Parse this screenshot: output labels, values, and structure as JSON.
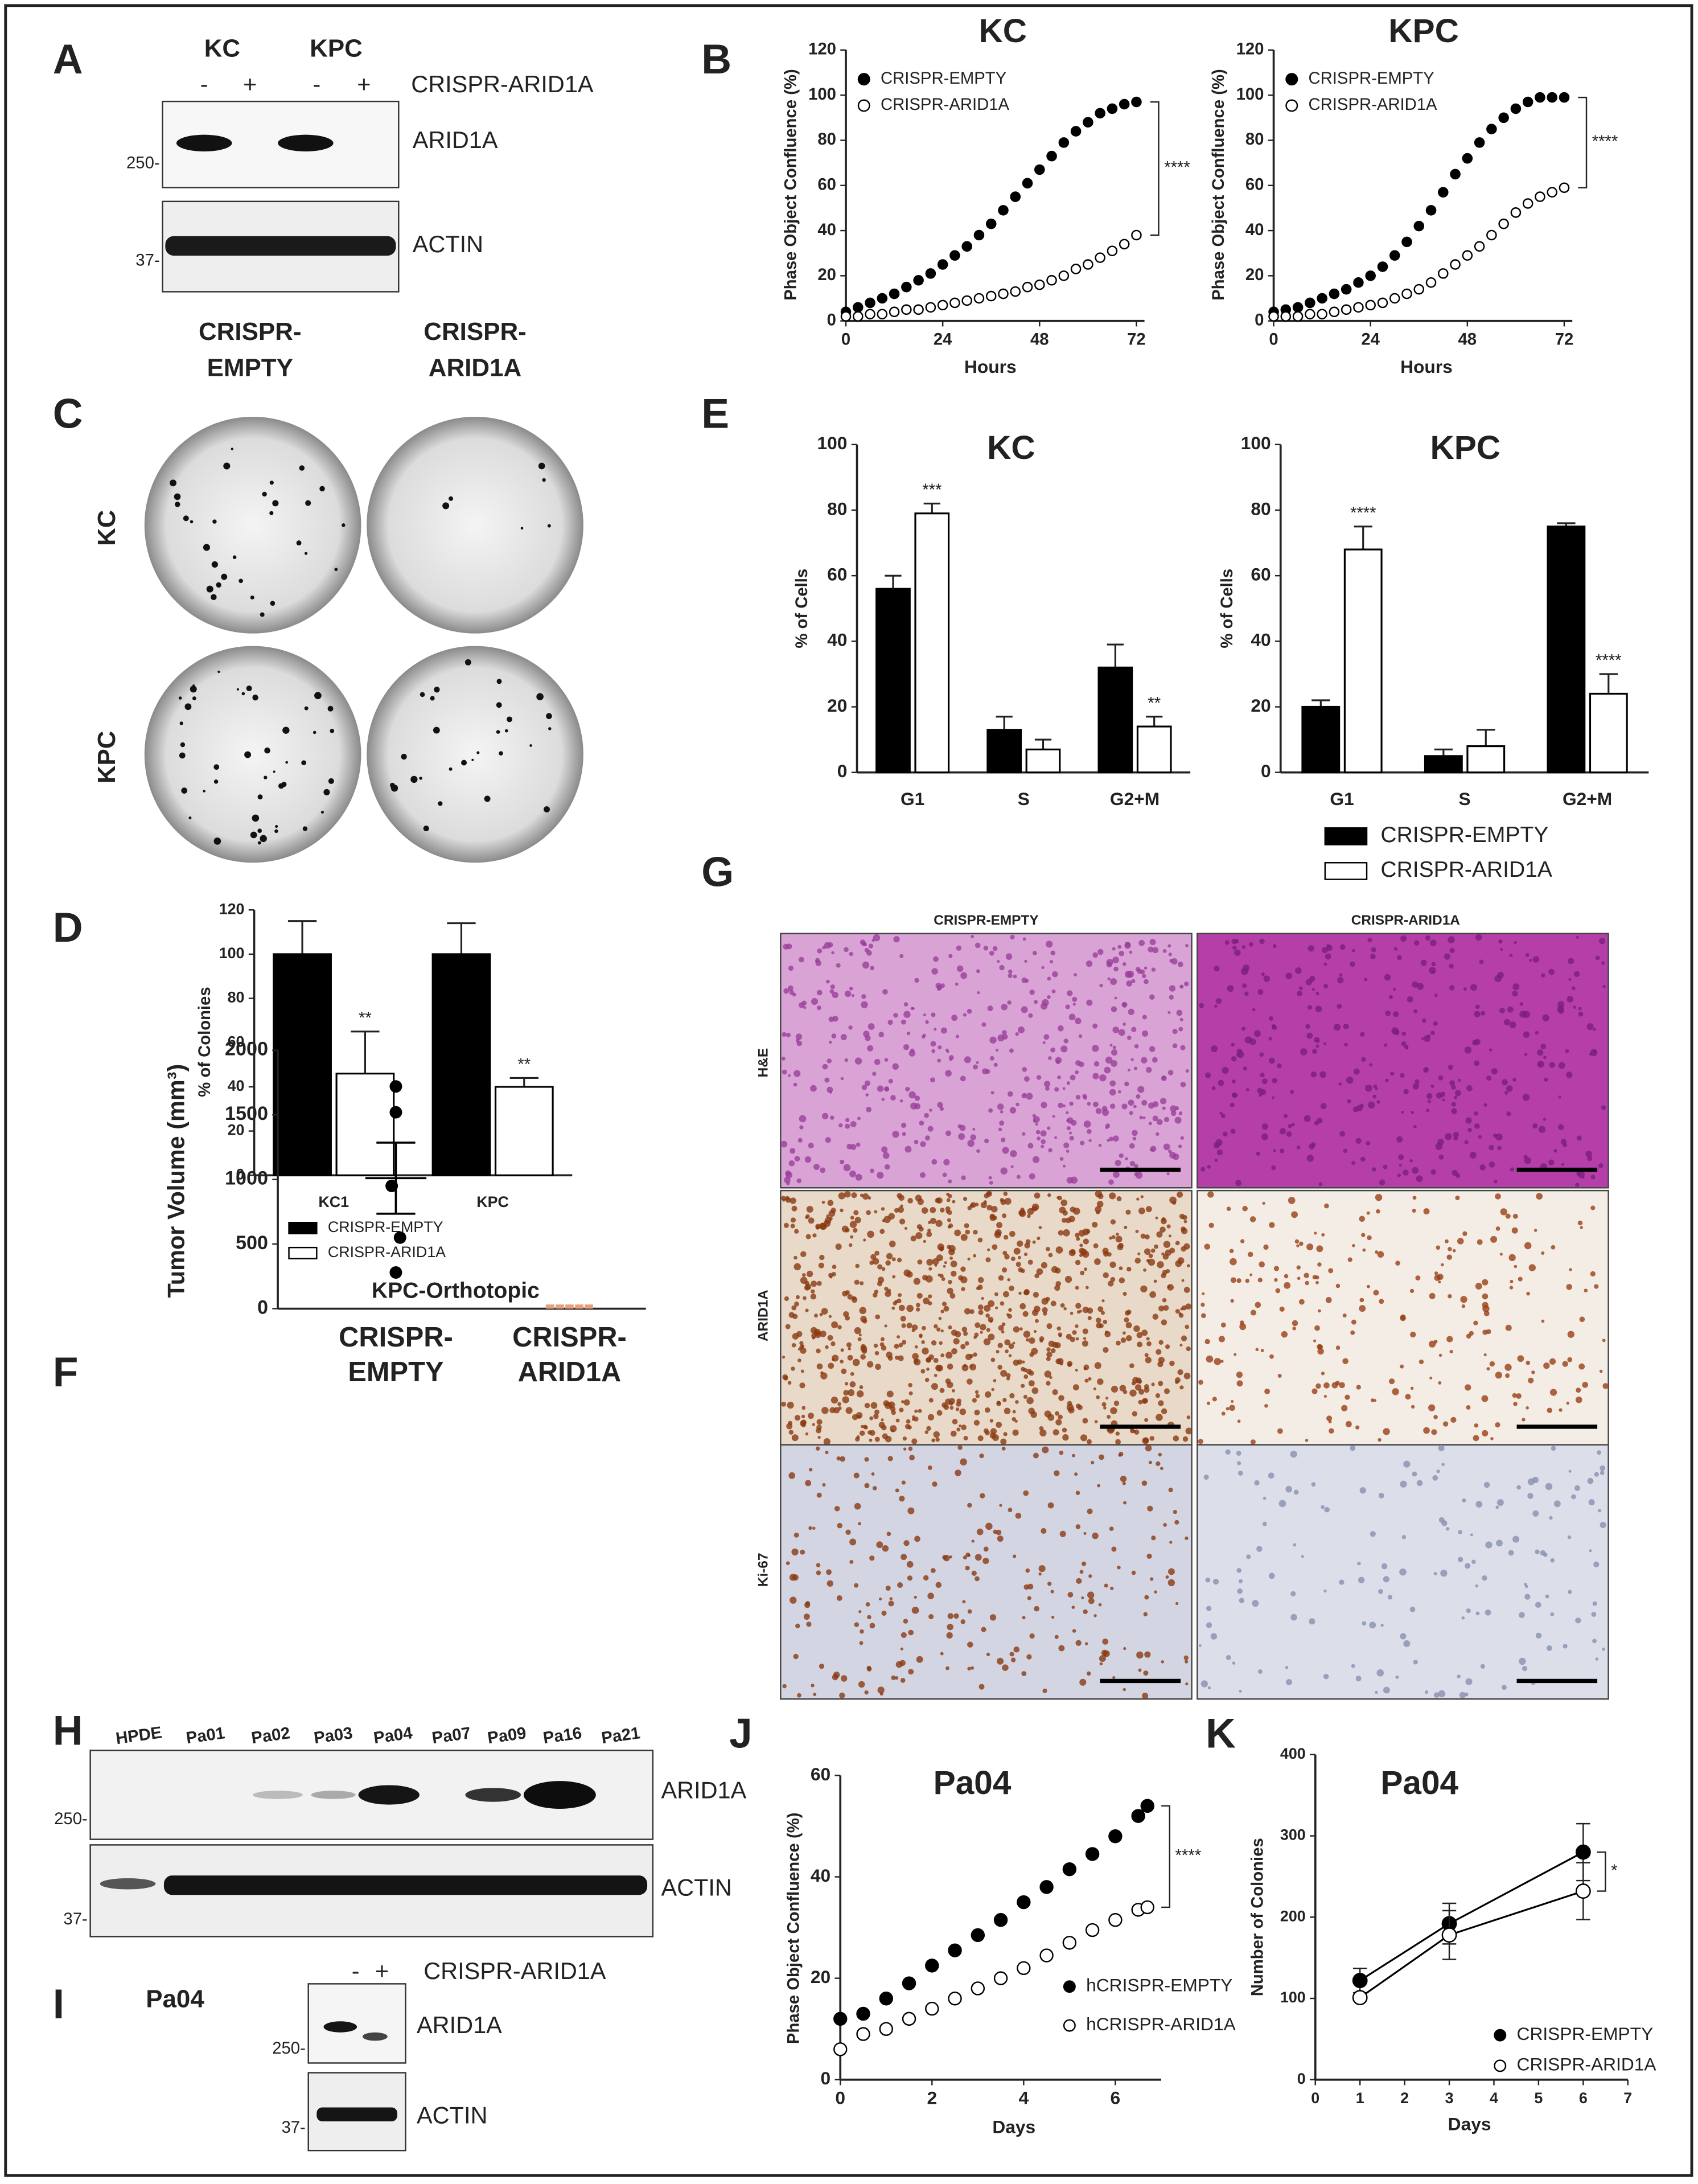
{
  "panel_labels": [
    "A",
    "B",
    "C",
    "D",
    "E",
    "F",
    "G",
    "H",
    "I",
    "J",
    "K"
  ],
  "blot_A": {
    "groups": [
      "KC",
      "KPC"
    ],
    "lanes": [
      "-",
      "+",
      "-",
      "+"
    ],
    "treatment": "CRISPR-ARID1A",
    "bands": [
      "ARID1A",
      "ACTIN"
    ],
    "markers": [
      "250-",
      "37-"
    ]
  },
  "colony_C": {
    "columns": [
      [
        "CRISPR-",
        "EMPTY"
      ],
      [
        "CRISPR-",
        "ARID1A"
      ]
    ],
    "rows": [
      "KC",
      "KPC"
    ]
  },
  "histology_G": {
    "columns": [
      "CRISPR-EMPTY",
      "CRISPR-ARID1A"
    ],
    "rows": [
      "H&E",
      "ARID1A",
      "Ki-67"
    ]
  },
  "blot_H": {
    "lanes": [
      "HPDE",
      "Pa01",
      "Pa02",
      "Pa03",
      "Pa04",
      "Pa07",
      "Pa09",
      "Pa16",
      "Pa21"
    ],
    "bands": [
      "ARID1A",
      "ACTIN"
    ],
    "markers": [
      "250-",
      "37-"
    ]
  },
  "blot_I": {
    "sample": "Pa04",
    "lanes": [
      "-",
      "+"
    ],
    "treatment": "CRISPR-ARID1A",
    "bands": [
      "ARID1A",
      "ACTIN"
    ],
    "markers": [
      "250-",
      "37-"
    ]
  },
  "chart_data": [
    {
      "type": "line",
      "title": "KC",
      "x_label": "Hours",
      "y_label": "Phase Object Confluence (%)",
      "x": [
        0,
        3,
        6,
        9,
        12,
        15,
        18,
        21,
        24,
        27,
        30,
        33,
        36,
        39,
        42,
        45,
        48,
        51,
        54,
        57,
        60,
        63,
        66,
        69,
        72
      ],
      "series": [
        {
          "name": "CRISPR-EMPTY",
          "color": "#000000",
          "facecolor": "#000000",
          "values": [
            4,
            6,
            8,
            10,
            12,
            15,
            18,
            21,
            25,
            29,
            33,
            38,
            43,
            49,
            55,
            61,
            67,
            73,
            79,
            84,
            88,
            92,
            94,
            96,
            97
          ]
        },
        {
          "name": "CRISPR-ARID1A",
          "color": "#000000",
          "facecolor": "#ffffff",
          "values": [
            2,
            2,
            3,
            3,
            4,
            5,
            5,
            6,
            7,
            8,
            9,
            10,
            11,
            12,
            13,
            15,
            16,
            18,
            20,
            23,
            25,
            28,
            31,
            34,
            38
          ]
        }
      ],
      "annotation": "****",
      "xlim": [
        0,
        74
      ],
      "xticks": [
        0,
        24,
        48,
        72
      ],
      "ylim": [
        0,
        120
      ],
      "yticks": [
        0,
        20,
        40,
        60,
        80,
        100,
        120
      ],
      "legend": "upper left"
    },
    {
      "type": "line",
      "title": "KPC",
      "x_label": "Hours",
      "y_label": "Phase Object Confluence (%)",
      "x": [
        0,
        3,
        6,
        9,
        12,
        15,
        18,
        21,
        24,
        27,
        30,
        33,
        36,
        39,
        42,
        45,
        48,
        51,
        54,
        57,
        60,
        63,
        66,
        69,
        72
      ],
      "series": [
        {
          "name": "CRISPR-EMPTY",
          "color": "#000000",
          "facecolor": "#000000",
          "values": [
            4,
            5,
            6,
            8,
            10,
            12,
            14,
            17,
            20,
            24,
            29,
            35,
            42,
            49,
            57,
            65,
            72,
            79,
            85,
            90,
            94,
            97,
            99,
            99,
            99
          ]
        },
        {
          "name": "CRISPR-ARID1A",
          "color": "#000000",
          "facecolor": "#ffffff",
          "values": [
            2,
            2,
            2,
            3,
            3,
            4,
            5,
            6,
            7,
            8,
            10,
            12,
            14,
            17,
            21,
            25,
            29,
            33,
            38,
            43,
            48,
            52,
            55,
            57,
            59
          ]
        }
      ],
      "annotation": "****",
      "xlim": [
        0,
        74
      ],
      "xticks": [
        0,
        24,
        48,
        72
      ],
      "ylim": [
        0,
        120
      ],
      "yticks": [
        0,
        20,
        40,
        60,
        80,
        100,
        120
      ],
      "legend": "upper left"
    },
    {
      "type": "bar",
      "title": "KC",
      "y_label": "% of Cells",
      "categories": [
        "G1",
        "S",
        "G2+M"
      ],
      "series": [
        {
          "name": "CRISPR-EMPTY",
          "color": "#000000",
          "values": [
            56,
            13,
            32
          ],
          "errors": [
            4,
            4,
            7
          ],
          "significance": [
            null,
            null,
            null
          ]
        },
        {
          "name": "CRISPR-ARID1A",
          "color": "#ffffff",
          "values": [
            79,
            7,
            14
          ],
          "errors": [
            3,
            3,
            3
          ],
          "significance": [
            "***",
            null,
            "**"
          ]
        }
      ],
      "ylim": [
        0,
        100
      ],
      "yticks": [
        0,
        20,
        40,
        60,
        80,
        100
      ]
    },
    {
      "type": "bar",
      "title": "KPC",
      "y_label": "% of Cells",
      "categories": [
        "G1",
        "S",
        "G2+M"
      ],
      "series": [
        {
          "name": "CRISPR-EMPTY",
          "color": "#000000",
          "values": [
            20,
            5,
            75
          ],
          "errors": [
            2,
            2,
            1
          ],
          "significance": [
            null,
            null,
            null
          ]
        },
        {
          "name": "CRISPR-ARID1A",
          "color": "#ffffff",
          "values": [
            68,
            8,
            24
          ],
          "errors": [
            7,
            5,
            6
          ],
          "significance": [
            "****",
            null,
            "****"
          ]
        }
      ],
      "ylim": [
        0,
        100
      ],
      "yticks": [
        0,
        20,
        40,
        60,
        80,
        100
      ],
      "legend": "below"
    },
    {
      "type": "bar",
      "y_label": "% of Colonies",
      "categories": [
        "KC1",
        "KPC"
      ],
      "series": [
        {
          "name": "CRISPR-EMPTY",
          "color": "#000000",
          "values": [
            100,
            100
          ],
          "errors": [
            15,
            14
          ],
          "significance": [
            null,
            null
          ]
        },
        {
          "name": "CRISPR-ARID1A",
          "color": "#ffffff",
          "values": [
            46,
            40
          ],
          "errors": [
            19,
            4
          ],
          "significance": [
            "**",
            "**"
          ]
        }
      ],
      "ylim": [
        0,
        120
      ],
      "yticks": [
        0,
        20,
        40,
        60,
        80,
        100,
        120
      ],
      "legend": "below"
    },
    {
      "type": "strip",
      "title": "KPC-Orthotopic",
      "y_label": "Tumor Volume (mm³)",
      "categories": [
        [
          "CRISPR-",
          "EMPTY"
        ],
        [
          "CRISPR-",
          "ARID1A"
        ]
      ],
      "groups": [
        {
          "color": "#000000",
          "values": [
            1720,
            1520,
            950,
            550,
            280
          ],
          "mean": 1010,
          "sem": 275
        },
        {
          "color": "#e8a07a",
          "values": [
            0,
            0,
            0,
            0,
            0
          ]
        }
      ],
      "ylim": [
        0,
        2000
      ],
      "yticks": [
        0,
        500,
        1000,
        1500,
        2000
      ]
    },
    {
      "type": "line",
      "title": "Pa04",
      "x_label": "Days",
      "y_label": "Phase Object Confluence (%)",
      "x": [
        0,
        0.5,
        1,
        1.5,
        2,
        2.5,
        3,
        3.5,
        4,
        4.5,
        5,
        5.5,
        6,
        6.5,
        6.7
      ],
      "series": [
        {
          "name": "hCRISPR-EMPTY",
          "color": "#000000",
          "facecolor": "#000000",
          "values": [
            12,
            13,
            16,
            19,
            22.5,
            25.5,
            28.5,
            31.5,
            35,
            38,
            41.5,
            44.5,
            48,
            52,
            54
          ]
        },
        {
          "name": "hCRISPR-ARID1A",
          "color": "#000000",
          "facecolor": "#ffffff",
          "values": [
            6,
            9,
            10,
            12,
            14,
            16,
            18,
            20,
            22,
            24.5,
            27,
            29.5,
            31.5,
            33.5,
            34
          ]
        }
      ],
      "annotation": "****",
      "xlim": [
        0,
        7
      ],
      "xticks": [
        0,
        2,
        4,
        6
      ],
      "ylim": [
        0,
        60
      ],
      "yticks": [
        0,
        20,
        40,
        60
      ],
      "legend": "lower right"
    },
    {
      "type": "line",
      "title": "Pa04",
      "x_label": "Days",
      "y_label": "Number of Colonies",
      "connect": true,
      "x": [
        1,
        3,
        6
      ],
      "series": [
        {
          "name": "CRISPR-EMPTY",
          "color": "#000000",
          "facecolor": "#000000",
          "values": [
            122,
            192,
            280
          ],
          "errors": [
            15,
            25,
            35
          ]
        },
        {
          "name": "CRISPR-ARID1A",
          "color": "#000000",
          "facecolor": "#ffffff",
          "values": [
            101,
            178,
            232
          ],
          "errors": [
            3,
            30,
            35
          ]
        }
      ],
      "annotation": "*",
      "xlim": [
        0,
        7
      ],
      "xticks": [
        0,
        1,
        2,
        3,
        4,
        5,
        6,
        7
      ],
      "ylim": [
        0,
        400
      ],
      "yticks": [
        0,
        100,
        200,
        300,
        400
      ],
      "legend": "lower right"
    }
  ]
}
